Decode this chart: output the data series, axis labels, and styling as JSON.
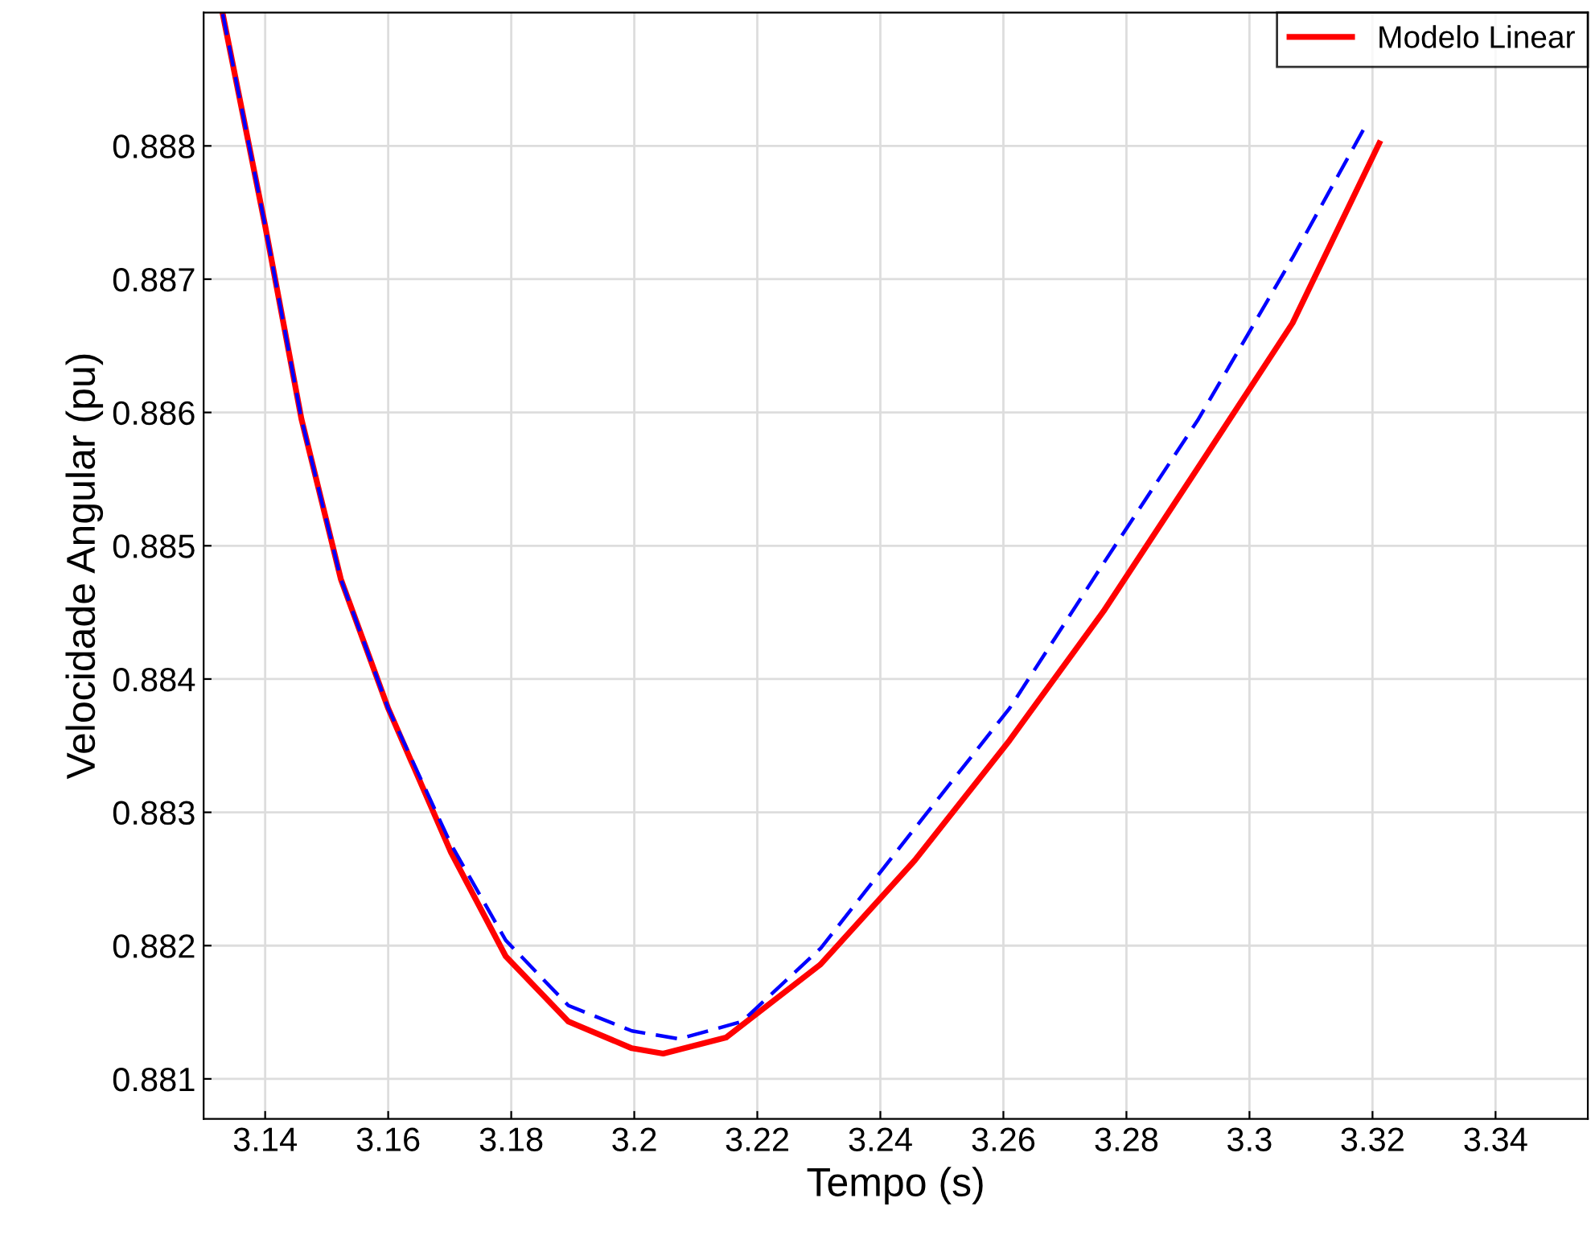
{
  "chart_data": {
    "type": "line",
    "xlabel": "Tempo (s)",
    "ylabel": "Velocidade Angular (pu)",
    "xlim": [
      3.13,
      3.355
    ],
    "xticks": [
      3.14,
      3.16,
      3.18,
      3.2,
      3.22,
      3.24,
      3.26,
      3.28,
      3.3,
      3.32,
      3.34
    ],
    "ylim": [
      0.8807,
      0.889
    ],
    "yticks": [
      0.881,
      0.882,
      0.883,
      0.884,
      0.885,
      0.886,
      0.887,
      0.888
    ],
    "grid": true,
    "legend": "top right",
    "marker": "none",
    "series": [
      {
        "name": "Modelo Linear",
        "color": "#ff0000",
        "line_style": "solid",
        "x": [
          3.1331,
          3.14,
          3.1459,
          3.1523,
          3.16,
          3.1702,
          3.1791,
          3.1893,
          3.1996,
          3.2047,
          3.2149,
          3.2303,
          3.2456,
          3.261,
          3.2763,
          3.2917,
          3.307,
          3.3211
        ],
        "values": [
          0.88899,
          0.8874,
          0.88595,
          0.88475,
          0.88378,
          0.8827,
          0.88192,
          0.88143,
          0.88123,
          0.88119,
          0.88131,
          0.88186,
          0.88264,
          0.88354,
          0.88451,
          0.88559,
          0.88667,
          0.88802
        ]
      },
      {
        "color": "#0000ff",
        "line_style": "dashed",
        "x": [
          3.1331,
          3.14,
          3.1459,
          3.1523,
          3.16,
          3.1702,
          3.1791,
          3.1893,
          3.1996,
          3.2073,
          3.2175,
          3.2303,
          3.2456,
          3.261,
          3.2763,
          3.2917,
          3.307,
          3.3185
        ],
        "values": [
          0.88899,
          0.8874,
          0.88595,
          0.88475,
          0.88378,
          0.88276,
          0.88204,
          0.88155,
          0.88136,
          0.8813,
          0.88143,
          0.88198,
          0.88288,
          0.88378,
          0.88487,
          0.88595,
          0.88716,
          0.88812
        ]
      }
    ]
  }
}
